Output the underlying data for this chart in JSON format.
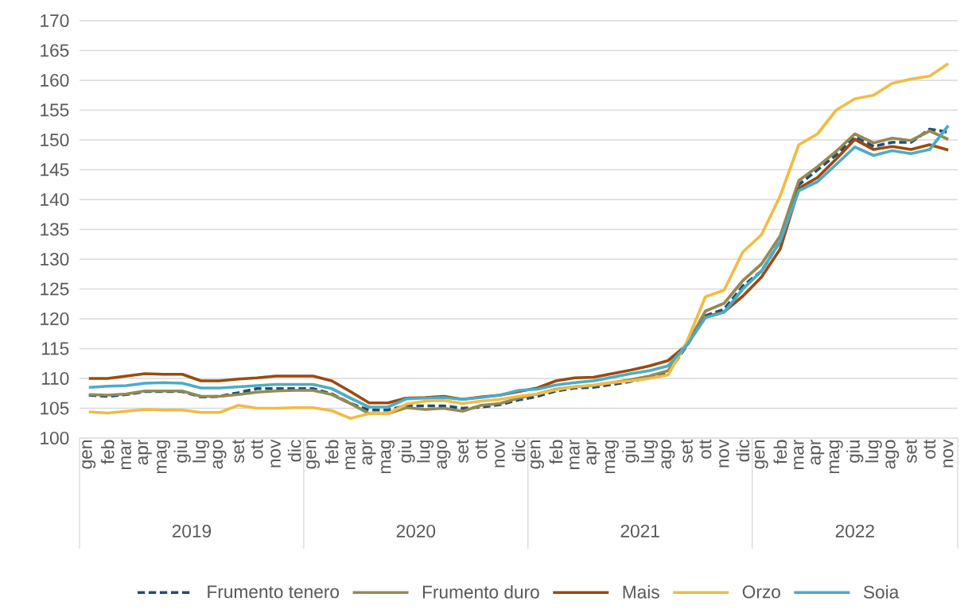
{
  "chart_data": {
    "type": "line",
    "categories": [
      "gen",
      "feb",
      "mar",
      "apr",
      "mag",
      "giu",
      "lug",
      "ago",
      "set",
      "ott",
      "nov",
      "dic",
      "gen",
      "feb",
      "mar",
      "apr",
      "mag",
      "giu",
      "lug",
      "ago",
      "set",
      "ott",
      "nov",
      "dic",
      "gen",
      "feb",
      "mar",
      "apr",
      "mag",
      "giu",
      "lug",
      "ago",
      "set",
      "ott",
      "nov",
      "dic",
      "gen",
      "feb",
      "mar",
      "apr",
      "mag",
      "giu",
      "lug",
      "ago",
      "set",
      "ott",
      "nov"
    ],
    "series": [
      {
        "name": "Frumento tenero",
        "color": "#1f4e79",
        "line_style": "dashed",
        "values": [
          107.2,
          107.0,
          107.3,
          107.8,
          107.8,
          107.8,
          106.9,
          107.0,
          107.6,
          108.3,
          108.3,
          108.3,
          108.3,
          107.4,
          105.8,
          104.7,
          104.7,
          105.4,
          105.4,
          105.4,
          105.0,
          105.2,
          105.6,
          106.4,
          107.0,
          107.9,
          108.4,
          108.5,
          109.0,
          109.5,
          110.2,
          111.0,
          115.5,
          120.5,
          121.6,
          125.5,
          128.0,
          133.0,
          142.5,
          145.0,
          147.5,
          150.5,
          148.9,
          149.6,
          149.6,
          151.8,
          151.3
        ]
      },
      {
        "name": "Frumento duro",
        "color": "#948a54",
        "line_style": "solid",
        "values": [
          107.3,
          107.2,
          107.4,
          107.9,
          107.9,
          107.9,
          107.0,
          107.0,
          107.3,
          107.7,
          107.9,
          108.0,
          108.0,
          107.3,
          105.8,
          104.1,
          104.1,
          105.1,
          104.8,
          105.0,
          104.5,
          105.5,
          105.8,
          106.7,
          107.4,
          108.2,
          108.6,
          108.8,
          109.3,
          109.8,
          110.4,
          111.3,
          115.6,
          121.3,
          122.6,
          126.4,
          129.2,
          133.9,
          143.2,
          145.5,
          148.1,
          151.0,
          149.5,
          150.3,
          149.9,
          151.5,
          150.1
        ]
      },
      {
        "name": "Mais",
        "color": "#9c4a0e",
        "line_style": "solid",
        "values": [
          110.0,
          110.0,
          110.4,
          110.8,
          110.7,
          110.7,
          109.6,
          109.6,
          109.9,
          110.1,
          110.4,
          110.4,
          110.4,
          109.6,
          107.8,
          105.9,
          105.9,
          106.7,
          106.8,
          107.0,
          106.5,
          106.9,
          107.2,
          107.8,
          108.4,
          109.6,
          110.1,
          110.2,
          110.8,
          111.4,
          112.1,
          113.0,
          115.6,
          120.3,
          121.2,
          123.8,
          127.0,
          131.7,
          141.9,
          143.7,
          146.8,
          150.1,
          148.4,
          148.9,
          148.4,
          149.2,
          148.3
        ]
      },
      {
        "name": "Orzo",
        "color": "#f0bc45",
        "line_style": "solid",
        "values": [
          104.4,
          104.2,
          104.5,
          104.8,
          104.7,
          104.7,
          104.3,
          104.3,
          105.5,
          105.0,
          105.0,
          105.1,
          105.1,
          104.6,
          103.3,
          104.1,
          104.1,
          105.7,
          106.2,
          106.3,
          105.8,
          106.2,
          106.5,
          107.0,
          107.4,
          108.1,
          108.6,
          108.9,
          109.3,
          109.6,
          110.0,
          110.6,
          116.1,
          123.7,
          124.8,
          131.2,
          134.1,
          140.6,
          149.2,
          151.0,
          155.0,
          156.9,
          157.5,
          159.5,
          160.2,
          160.7,
          162.8
        ]
      },
      {
        "name": "Soia",
        "color": "#4bacc6",
        "line_style": "solid",
        "values": [
          108.5,
          108.7,
          108.8,
          109.2,
          109.3,
          109.2,
          108.4,
          108.4,
          108.6,
          108.8,
          109.0,
          109.0,
          109.0,
          108.3,
          106.7,
          105.2,
          105.2,
          106.6,
          106.7,
          106.8,
          106.5,
          106.8,
          107.2,
          108.0,
          108.2,
          108.9,
          109.3,
          109.6,
          110.2,
          110.8,
          111.3,
          112.1,
          115.6,
          120.2,
          121.1,
          125.0,
          128.0,
          133.0,
          141.5,
          143.0,
          145.9,
          148.8,
          147.4,
          148.2,
          147.7,
          148.4,
          152.4
        ]
      }
    ],
    "ylim": [
      100,
      170
    ],
    "yticks": [
      100,
      105,
      110,
      115,
      120,
      125,
      130,
      135,
      140,
      145,
      150,
      155,
      160,
      165,
      170
    ],
    "annotations": [
      "2019",
      "2020",
      "2021",
      "2022"
    ],
    "grid": "y",
    "legend": "bottom",
    "marker": "none"
  }
}
